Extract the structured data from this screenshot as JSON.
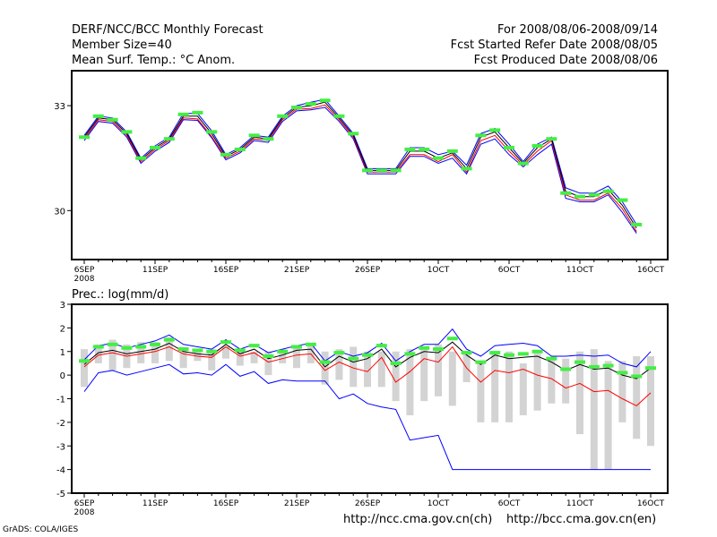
{
  "header": {
    "title": "DERF/NCC/BCC Monthly Forecast",
    "member_size": "Member Size=40",
    "variable": "Mean Surf. Temp.: °C Anom.",
    "period": "For 2008/08/06-2008/09/14",
    "fcst_started": "Fcst Started Refer Date 2008/08/05",
    "fcst_produced": "Fcst Produced Date 2008/08/06"
  },
  "footer": {
    "grads": "GrADS: COLA/IGES",
    "url_ncc": "http://ncc.cma.gov.cn(ch)",
    "url_bcc": "http://bcc.cma.gov.cn(en)"
  },
  "colors": {
    "mean": "#000000",
    "upper": "#0000ff",
    "lower": "#ff0000",
    "marker": "#44ee44",
    "bar": "#d3d3d3"
  },
  "chart_data": [
    {
      "type": "line",
      "title": "Mean Surf. Temp.: °C Anom.",
      "x_start_label": "2008",
      "x_tick_labels": [
        "6SEP",
        "11SEP",
        "16SEP",
        "21SEP",
        "26SEP",
        "1OCT",
        "6OCT",
        "11OCT",
        "16OCT"
      ],
      "x_tick_days": [
        0,
        5,
        10,
        15,
        20,
        25,
        30,
        35,
        40
      ],
      "y_tick_labels": [
        "30",
        "33"
      ],
      "y_ticks": [
        30,
        33
      ],
      "ylim": [
        28.6,
        34
      ],
      "series": [
        {
          "name": "mean",
          "values": [
            32.1,
            32.65,
            32.6,
            32.2,
            31.45,
            31.8,
            32.05,
            32.7,
            32.7,
            32.2,
            31.55,
            31.75,
            32.1,
            32.05,
            32.65,
            32.95,
            33.0,
            33.1,
            32.65,
            32.15,
            31.15,
            31.15,
            31.15,
            31.7,
            31.7,
            31.5,
            31.65,
            31.2,
            32.1,
            32.25,
            31.8,
            31.35,
            31.8,
            32.05,
            30.55,
            30.4,
            30.4,
            30.6,
            30.15,
            29.5
          ]
        },
        {
          "name": "upper",
          "values": [
            32.15,
            32.7,
            32.65,
            32.25,
            31.5,
            31.85,
            32.1,
            32.78,
            32.78,
            32.28,
            31.6,
            31.8,
            32.15,
            32.1,
            32.7,
            33.0,
            33.1,
            33.18,
            32.7,
            32.2,
            31.2,
            31.2,
            31.2,
            31.8,
            31.8,
            31.6,
            31.7,
            31.3,
            32.2,
            32.35,
            31.9,
            31.4,
            31.9,
            32.1,
            30.65,
            30.5,
            30.5,
            30.7,
            30.25,
            29.6
          ]
        },
        {
          "name": "lower",
          "values": [
            32.05,
            32.6,
            32.55,
            32.15,
            31.4,
            31.75,
            32.0,
            32.65,
            32.62,
            32.12,
            31.5,
            31.7,
            32.05,
            32.0,
            32.6,
            32.9,
            32.92,
            33.02,
            32.6,
            32.1,
            31.1,
            31.1,
            31.1,
            31.6,
            31.6,
            31.4,
            31.6,
            31.1,
            32.0,
            32.15,
            31.7,
            31.3,
            31.7,
            32.0,
            30.45,
            30.3,
            30.3,
            30.5,
            30.05,
            29.4
          ]
        },
        {
          "name": "members_min",
          "values": [
            32.0,
            32.55,
            32.5,
            32.1,
            31.35,
            31.7,
            31.95,
            32.6,
            32.58,
            32.08,
            31.45,
            31.65,
            32.0,
            31.95,
            32.55,
            32.85,
            32.88,
            32.95,
            32.55,
            32.05,
            31.05,
            31.05,
            31.05,
            31.55,
            31.55,
            31.35,
            31.5,
            31.05,
            31.9,
            32.05,
            31.6,
            31.25,
            31.6,
            31.9,
            30.35,
            30.25,
            30.25,
            30.45,
            29.95,
            29.35
          ]
        }
      ],
      "markers": {
        "name": "observed",
        "values": [
          32.1,
          32.7,
          32.6,
          32.25,
          31.5,
          31.8,
          32.05,
          32.75,
          32.8,
          32.25,
          31.6,
          31.75,
          32.15,
          32.05,
          32.7,
          32.95,
          33.05,
          33.15,
          32.7,
          32.2,
          31.15,
          31.15,
          31.15,
          31.75,
          31.75,
          31.5,
          31.7,
          31.2,
          32.15,
          32.3,
          31.8,
          31.35,
          31.85,
          32.05,
          30.5,
          30.4,
          30.45,
          30.55,
          30.3,
          29.6
        ]
      }
    },
    {
      "type": "line",
      "title": "Prec.: log(mm/d)",
      "x_start_label": "2008",
      "x_tick_labels": [
        "6SEP",
        "11SEP",
        "16SEP",
        "21SEP",
        "26SEP",
        "1OCT",
        "6OCT",
        "11OCT",
        "16OCT"
      ],
      "x_tick_days": [
        0,
        5,
        10,
        15,
        20,
        25,
        30,
        35,
        40
      ],
      "y_tick_labels": [
        "-5",
        "-4",
        "-3",
        "-2",
        "-1",
        "0",
        "1",
        "2",
        "3"
      ],
      "y_ticks": [
        -5,
        -4,
        -3,
        -2,
        -1,
        0,
        1,
        2,
        3
      ],
      "ylim": [
        -5,
        3
      ],
      "series": [
        {
          "name": "mean",
          "values": [
            0.45,
            0.95,
            1.05,
            0.9,
            1.0,
            1.1,
            1.35,
            1.0,
            0.9,
            0.85,
            1.3,
            0.9,
            1.1,
            0.7,
            0.85,
            1.05,
            1.1,
            0.35,
            0.8,
            0.55,
            0.7,
            1.1,
            0.35,
            0.75,
            1.0,
            0.95,
            1.4,
            0.85,
            0.45,
            0.85,
            0.7,
            0.75,
            0.8,
            0.55,
            0.2,
            0.45,
            0.25,
            0.3,
            0.0,
            -0.15,
            0.3
          ]
        },
        {
          "name": "upper",
          "values": [
            0.65,
            1.25,
            1.35,
            1.15,
            1.3,
            1.45,
            1.7,
            1.3,
            1.2,
            1.1,
            1.5,
            1.1,
            1.3,
            0.95,
            1.1,
            1.25,
            1.35,
            0.6,
            1.0,
            0.8,
            0.95,
            1.35,
            0.6,
            1.0,
            1.3,
            1.3,
            1.95,
            1.1,
            0.8,
            1.25,
            1.3,
            1.35,
            1.25,
            0.8,
            0.8,
            0.85,
            0.8,
            0.85,
            0.5,
            0.35,
            1.0
          ]
        },
        {
          "name": "lower",
          "values": [
            0.35,
            0.85,
            0.95,
            0.8,
            0.9,
            1.0,
            1.2,
            0.9,
            0.8,
            0.75,
            1.2,
            0.8,
            0.95,
            0.55,
            0.7,
            0.85,
            0.9,
            0.2,
            0.55,
            0.3,
            0.15,
            0.75,
            -0.3,
            0.15,
            0.7,
            0.55,
            1.2,
            0.3,
            -0.3,
            0.2,
            0.1,
            0.25,
            0.0,
            -0.15,
            -0.55,
            -0.35,
            -0.7,
            -0.65,
            -1.0,
            -1.3,
            -0.75
          ]
        },
        {
          "name": "members_min",
          "values": [
            -0.7,
            0.1,
            0.2,
            0.0,
            0.15,
            0.3,
            0.45,
            0.05,
            0.1,
            0.0,
            0.45,
            -0.05,
            0.15,
            -0.35,
            -0.2,
            -0.25,
            -0.25,
            -0.25,
            -1.0,
            -0.8,
            -1.2,
            -1.35,
            -1.45,
            -2.75,
            -2.65,
            -2.55,
            -4.0,
            -4.0,
            -4.0,
            -4.0,
            -4.0,
            -4.0,
            -4.0,
            -4.0,
            -4.0,
            -4.0,
            -4.0,
            -4.0,
            -4.0,
            -4.0,
            -4.0
          ]
        }
      ],
      "markers": {
        "name": "observed",
        "values": [
          0.6,
          1.2,
          1.3,
          1.15,
          1.2,
          1.3,
          1.5,
          1.1,
          1.05,
          1.0,
          1.4,
          1.05,
          1.25,
          0.8,
          1.0,
          1.2,
          1.3,
          0.55,
          0.95,
          0.7,
          0.85,
          1.25,
          0.5,
          0.9,
          1.15,
          1.1,
          1.55,
          0.95,
          0.55,
          0.95,
          0.85,
          0.9,
          1.0,
          0.7,
          0.25,
          0.55,
          0.35,
          0.4,
          0.1,
          -0.05,
          0.3
        ]
      },
      "bars": {
        "name": "member_range",
        "low": [
          -0.5,
          0.5,
          0.2,
          0.3,
          0.5,
          0.5,
          0.6,
          0.3,
          0.6,
          0.2,
          0.7,
          0.4,
          0.5,
          0.0,
          0.5,
          0.3,
          0.5,
          -0.4,
          -0.2,
          -0.5,
          -0.5,
          -0.5,
          -1.1,
          -1.7,
          -1.1,
          -0.9,
          -1.3,
          -0.3,
          -2.0,
          -2.0,
          -2.0,
          -1.7,
          -1.5,
          -1.2,
          -1.2,
          -2.5,
          -4.0,
          -4.0,
          -2.0,
          -2.7,
          -3.0
        ],
        "high": [
          1.1,
          1.3,
          1.5,
          1.3,
          1.4,
          1.4,
          1.6,
          1.2,
          1.0,
          1.1,
          1.2,
          1.0,
          1.0,
          1.0,
          1.1,
          1.2,
          1.3,
          1.0,
          1.1,
          1.2,
          1.0,
          1.0,
          1.0,
          1.1,
          1.2,
          1.3,
          1.0,
          1.0,
          0.5,
          1.0,
          1.0,
          0.5,
          1.0,
          0.7,
          0.7,
          1.0,
          1.1,
          0.6,
          0.6,
          0.8,
          0.8
        ]
      }
    }
  ]
}
